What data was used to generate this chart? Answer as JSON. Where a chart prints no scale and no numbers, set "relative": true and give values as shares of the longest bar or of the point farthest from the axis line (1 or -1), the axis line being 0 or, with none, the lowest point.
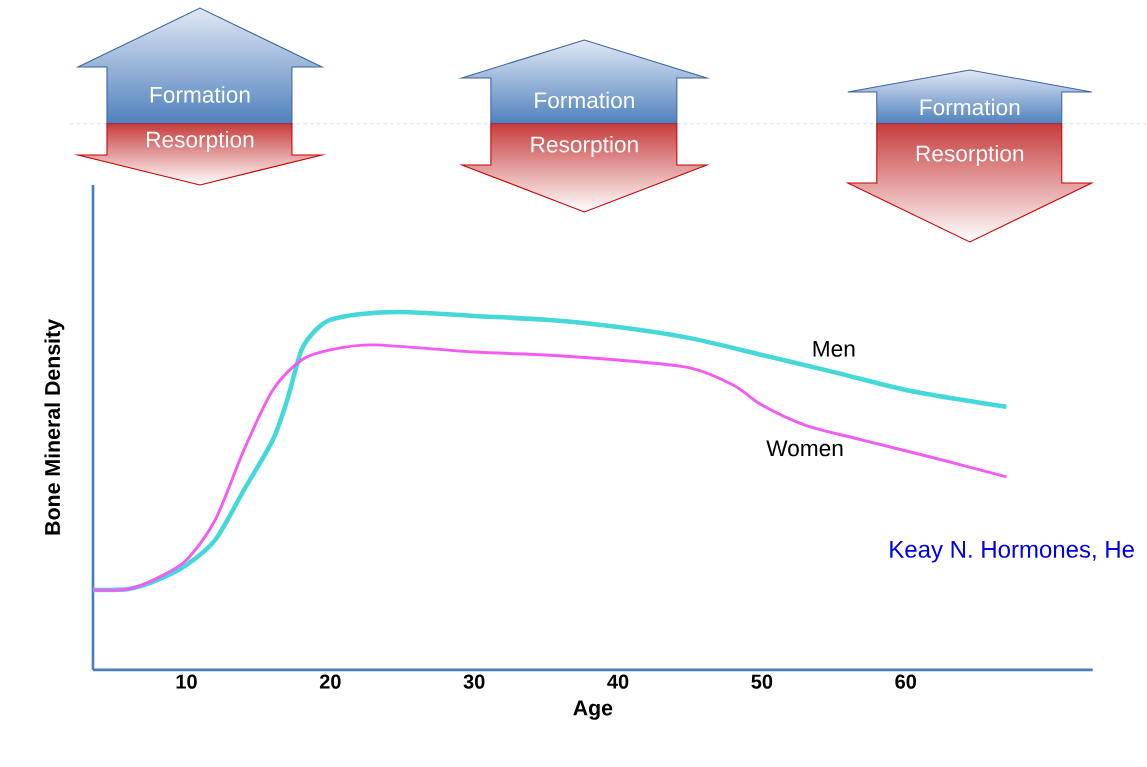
{
  "chart_data": {
    "type": "line",
    "relative": true,
    "xlabel": "Age",
    "ylabel": "Bone Mineral Density",
    "xlim": [
      3.5,
      73
    ],
    "xticks": [
      10,
      20,
      30,
      40,
      50,
      60
    ],
    "grid": false,
    "marker": "none",
    "line_style": "solid",
    "series": [
      {
        "name": "Men",
        "color": "#45d8d8",
        "x": [
          3.5,
          6,
          8,
          10,
          12,
          14,
          16,
          17,
          18,
          19,
          20,
          22,
          25,
          30,
          35,
          40,
          45,
          50,
          55,
          60,
          64,
          67
        ],
        "values": [
          0.223,
          0.226,
          0.251,
          0.293,
          0.363,
          0.503,
          0.642,
          0.754,
          0.894,
          0.95,
          0.978,
          0.994,
          1,
          0.989,
          0.978,
          0.958,
          0.927,
          0.88,
          0.832,
          0.782,
          0.754,
          0.735
        ]
      },
      {
        "name": "Women",
        "color": "#f25cf2",
        "x": [
          3.5,
          6,
          8,
          10,
          12,
          14,
          16,
          18,
          20,
          23,
          30,
          35,
          40,
          45,
          48,
          50,
          53,
          57,
          62,
          67
        ],
        "values": [
          0.223,
          0.226,
          0.257,
          0.307,
          0.419,
          0.615,
          0.782,
          0.866,
          0.894,
          0.908,
          0.888,
          0.88,
          0.866,
          0.844,
          0.796,
          0.74,
          0.684,
          0.642,
          0.592,
          0.539
        ]
      }
    ],
    "annotations": [
      "Formation",
      "Resorption",
      "Formation",
      "Resorption",
      "Formation",
      "Resorption",
      "Keay N. Hormones, He"
    ]
  }
}
